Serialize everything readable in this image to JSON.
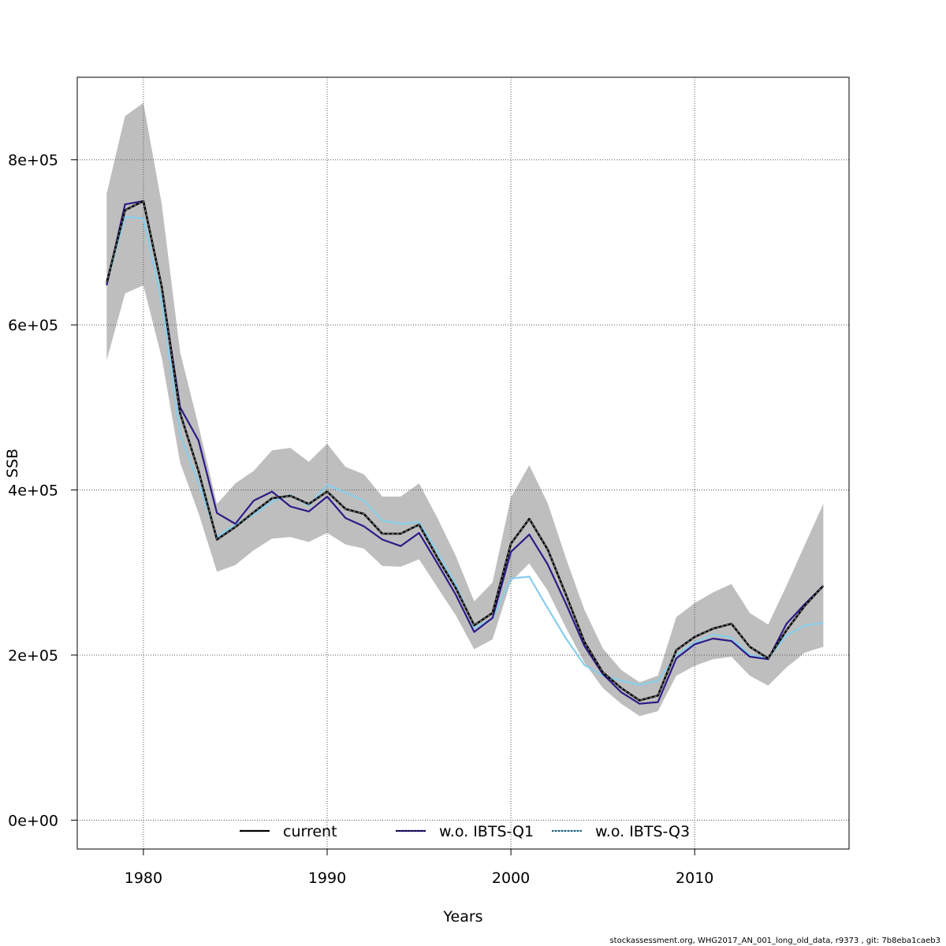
{
  "chart_data": {
    "type": "line",
    "title": "",
    "xlabel": "Years",
    "ylabel": "SSB",
    "xlim": [
      1976.4,
      2018.4
    ],
    "ylim": [
      -35000,
      900000
    ],
    "x_ticks": [
      1980,
      1990,
      2000,
      2010
    ],
    "x_tick_labels": [
      "1980",
      "1990",
      "2000",
      "2010"
    ],
    "y_ticks": [
      0,
      200000,
      400000,
      600000,
      800000
    ],
    "y_tick_labels": [
      "0e+00",
      "2e+05",
      "4e+05",
      "6e+05",
      "8e+05"
    ],
    "grid": true,
    "legend_position": "bottom",
    "x": [
      1978,
      1979,
      1980,
      1981,
      1982,
      1983,
      1984,
      1985,
      1986,
      1987,
      1988,
      1989,
      1990,
      1991,
      1992,
      1993,
      1994,
      1995,
      1996,
      1997,
      1998,
      1999,
      2000,
      2001,
      2002,
      2003,
      2004,
      2005,
      2006,
      2007,
      2008,
      2009,
      2010,
      2011,
      2012,
      2013,
      2014,
      2015,
      2016,
      2017
    ],
    "band": {
      "color": "#bebebe",
      "lower": [
        557000,
        638000,
        648000,
        560000,
        433000,
        372000,
        301000,
        309000,
        327000,
        341000,
        343000,
        337000,
        348000,
        334000,
        329000,
        308000,
        307000,
        316000,
        282000,
        248000,
        207000,
        219000,
        289000,
        311000,
        278000,
        233000,
        191000,
        160000,
        141000,
        126000,
        132000,
        175000,
        187000,
        195000,
        198000,
        175000,
        163000,
        185000,
        203000,
        210000
      ],
      "upper": [
        759000,
        853000,
        869000,
        746000,
        567000,
        478000,
        383000,
        408000,
        423000,
        448000,
        451000,
        434000,
        456000,
        428000,
        419000,
        392000,
        392000,
        408000,
        366000,
        320000,
        265000,
        288000,
        391000,
        430000,
        384000,
        317000,
        255000,
        208000,
        182000,
        167000,
        175000,
        246000,
        263000,
        276000,
        286000,
        251000,
        237000,
        284000,
        334000,
        383000
      ]
    },
    "series": [
      {
        "name": "current",
        "color": "#000000",
        "values": [
          651000,
          739000,
          750000,
          646000,
          493000,
          423000,
          340000,
          355000,
          373000,
          390000,
          393000,
          383000,
          398000,
          377000,
          371000,
          347000,
          347000,
          358000,
          318000,
          281000,
          236000,
          251000,
          335000,
          365000,
          328000,
          273000,
          216000,
          179000,
          160000,
          145000,
          151000,
          206000,
          222000,
          232000,
          238000,
          210000,
          196000,
          230000,
          260000,
          284000
        ]
      },
      {
        "name": "w.o. IBTS-Q1",
        "color": "#2e1a87",
        "values": [
          648000,
          746000,
          750000,
          646000,
          500000,
          460000,
          372000,
          359000,
          387000,
          398000,
          380000,
          374000,
          392000,
          366000,
          356000,
          340000,
          332000,
          348000,
          311000,
          273000,
          228000,
          245000,
          325000,
          346000,
          310000,
          262000,
          211000,
          177000,
          155000,
          141000,
          143000,
          196000,
          213000,
          220000,
          217000,
          198000,
          195000,
          238000,
          262000,
          284000
        ]
      },
      {
        "name": "w.o. IBTS-Q3",
        "color": "#87ceeb",
        "values": [
          650000,
          731000,
          729000,
          628000,
          467000,
          409000,
          343000,
          358000,
          370000,
          386000,
          394000,
          381000,
          406000,
          397000,
          387000,
          363000,
          359000,
          361000,
          325000,
          286000,
          233000,
          244000,
          293000,
          295000,
          257000,
          220000,
          188000,
          175000,
          169000,
          164000,
          169000,
          200000,
          215000,
          225000,
          221000,
          200000,
          196000,
          224000,
          236000,
          239000
        ]
      }
    ]
  },
  "footer": "stockassessment.org, WHG2017_AN_001_long_old_data, r9373 , git: 7b8eba1caeb3"
}
